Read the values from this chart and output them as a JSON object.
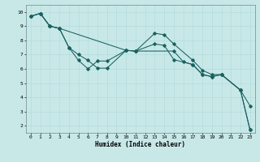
{
  "xlabel": "Humidex (Indice chaleur)",
  "bg_color": "#c8e8e8",
  "grid_color": "#b0d8d8",
  "line_color": "#1a6060",
  "xlim": [
    -0.5,
    23.5
  ],
  "ylim": [
    1.5,
    10.5
  ],
  "xticks": [
    0,
    1,
    2,
    3,
    4,
    5,
    6,
    7,
    8,
    9,
    10,
    11,
    12,
    13,
    14,
    15,
    16,
    17,
    18,
    19,
    20,
    21,
    22,
    23
  ],
  "yticks": [
    2,
    3,
    4,
    5,
    6,
    7,
    8,
    9,
    10
  ],
  "line1_x": [
    0,
    1,
    2,
    3,
    4,
    5,
    6,
    7,
    8,
    10,
    11,
    13,
    14,
    15,
    17,
    18,
    19,
    20,
    22,
    23
  ],
  "line1_y": [
    9.7,
    9.9,
    9.0,
    8.85,
    7.5,
    7.0,
    6.6,
    6.05,
    6.05,
    7.3,
    7.25,
    8.5,
    8.4,
    7.75,
    6.6,
    5.9,
    5.6,
    5.6,
    4.5,
    3.4
  ],
  "line2_x": [
    0,
    1,
    2,
    3,
    4,
    5,
    6,
    7,
    8,
    10,
    11,
    13,
    14,
    15,
    17,
    18,
    19,
    20,
    22,
    23
  ],
  "line2_y": [
    9.7,
    9.9,
    9.0,
    8.85,
    7.5,
    6.6,
    6.0,
    6.55,
    6.55,
    7.3,
    7.25,
    7.75,
    7.65,
    6.65,
    6.3,
    5.6,
    5.45,
    5.6,
    4.5,
    1.7
  ],
  "line3_x": [
    0,
    1,
    2,
    3,
    10,
    11,
    15,
    16,
    17,
    18,
    19,
    20,
    22,
    23
  ],
  "line3_y": [
    9.7,
    9.9,
    9.0,
    8.85,
    7.3,
    7.25,
    7.25,
    6.5,
    6.3,
    5.6,
    5.45,
    5.6,
    4.5,
    1.7
  ]
}
